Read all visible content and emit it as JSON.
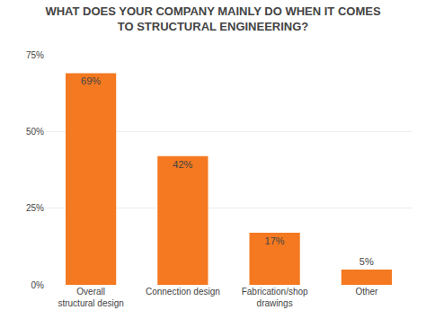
{
  "chart_data": {
    "type": "bar",
    "title": "WHAT DOES YOUR COMPANY MAINLY DO WHEN IT COMES TO STRUCTURAL ENGINEERING?",
    "categories": [
      "Overall structural design",
      "Connection design",
      "Fabrication/shop drawings",
      "Other"
    ],
    "values": [
      69,
      42,
      17,
      5
    ],
    "value_labels": [
      "69%",
      "42%",
      "17%",
      "5%"
    ],
    "data_labels": true,
    "color": "#F47920",
    "ylim": [
      0,
      75
    ],
    "yticks": [
      {
        "value": 0,
        "label": "0%"
      },
      {
        "value": 25,
        "label": "25%"
      },
      {
        "value": 50,
        "label": "50%"
      },
      {
        "value": 75,
        "label": "75%"
      }
    ],
    "grid": true
  }
}
